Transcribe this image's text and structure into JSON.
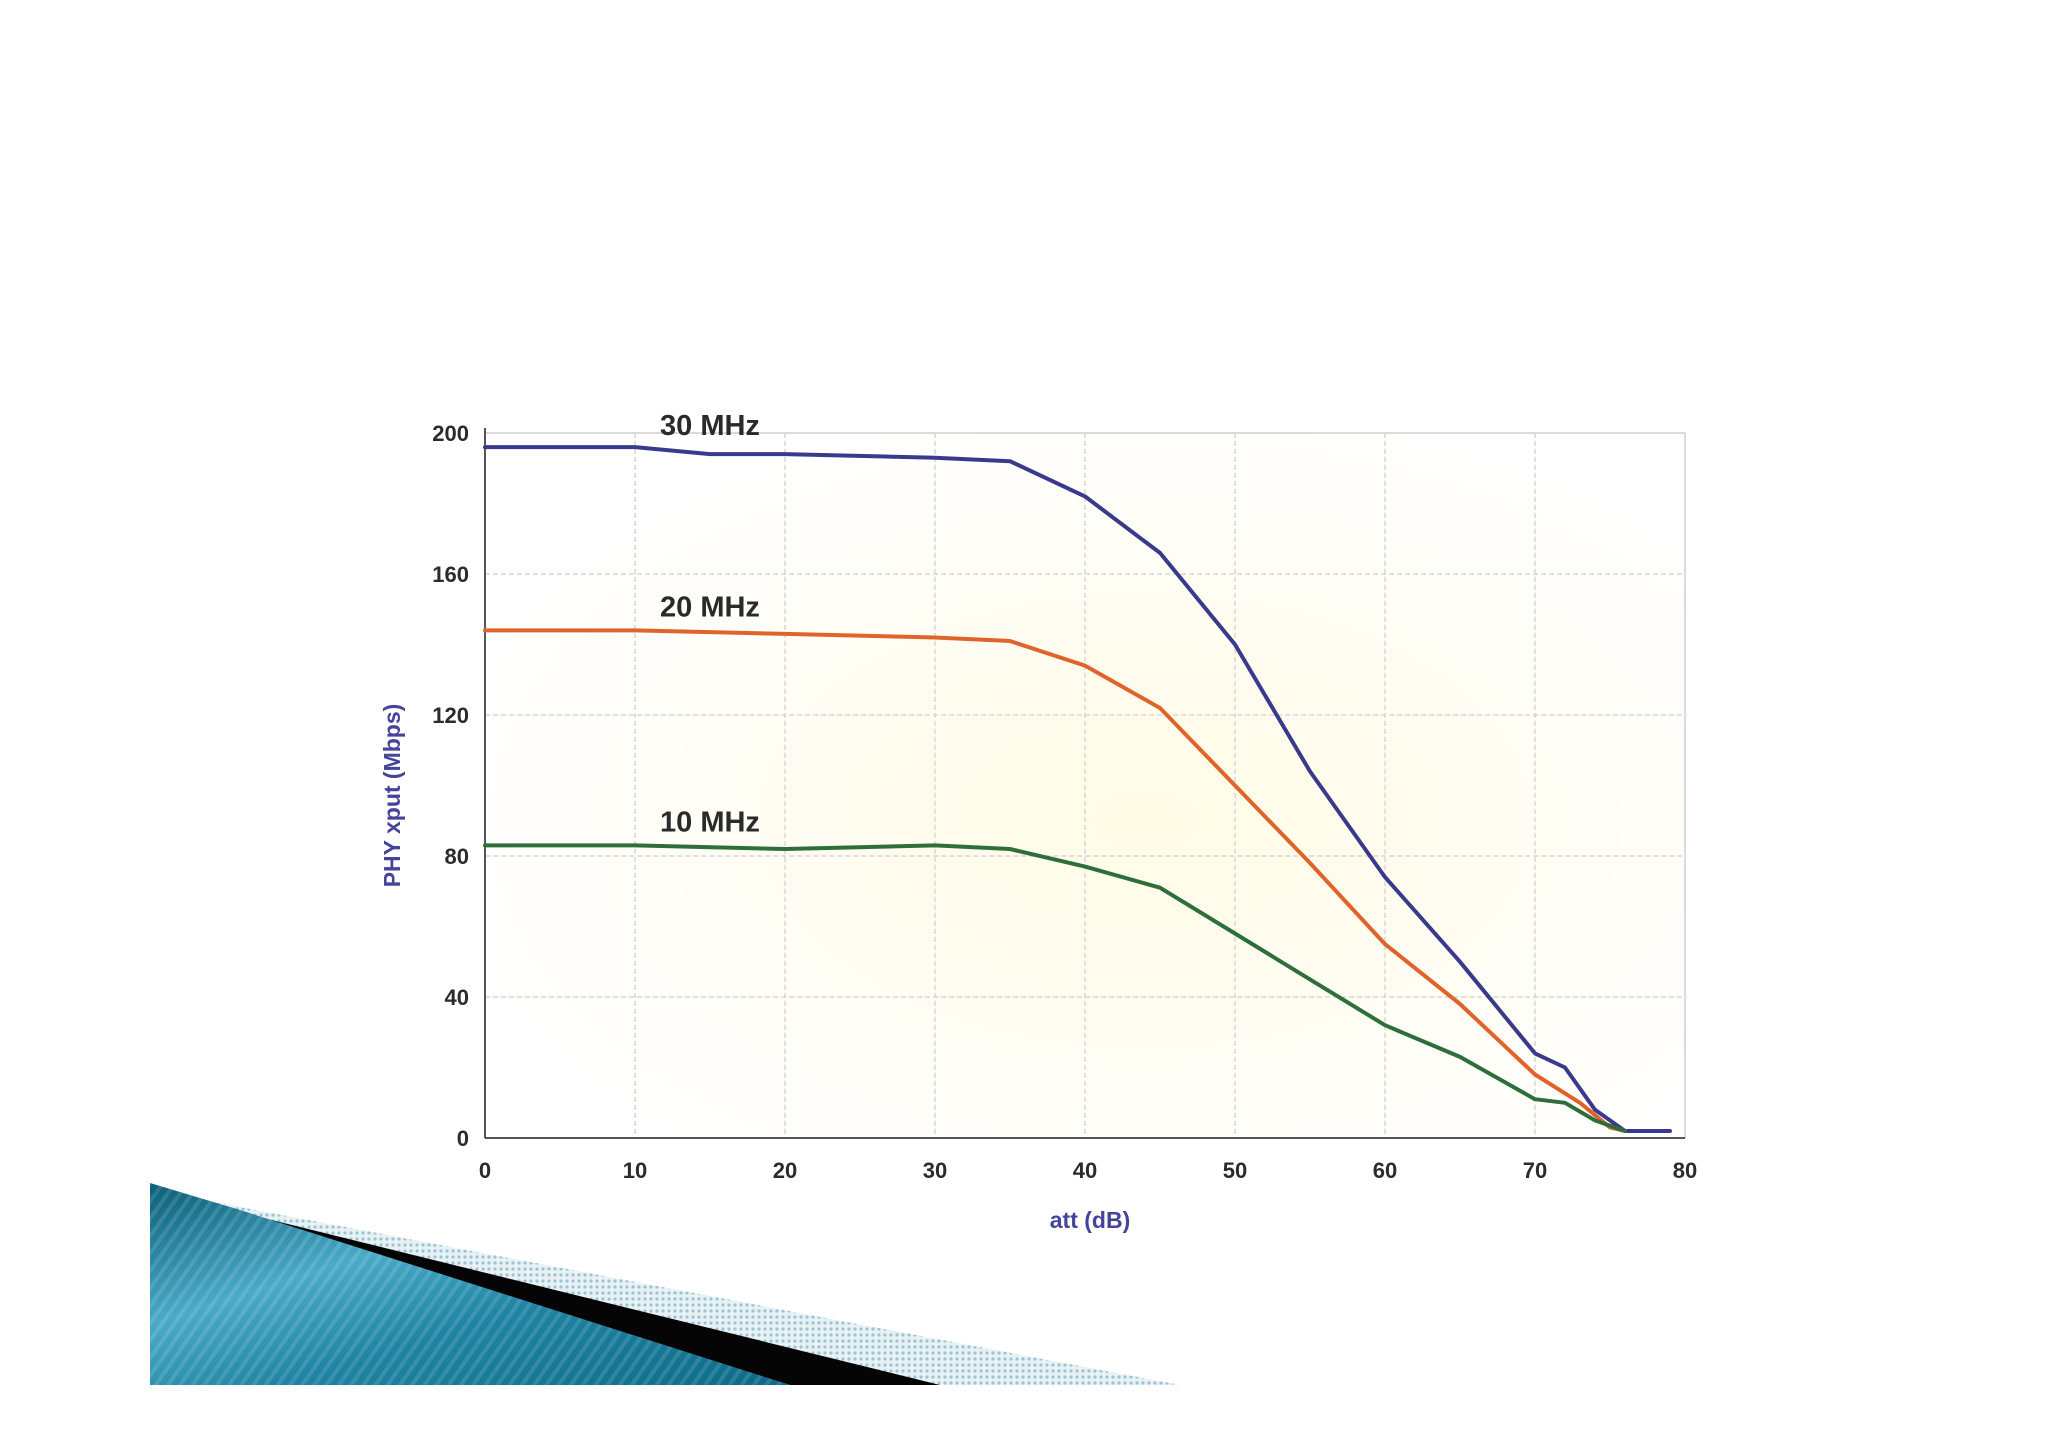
{
  "chart_data": {
    "type": "line",
    "xlabel": "att (dB)",
    "ylabel": "PHY xput (Mbps)",
    "xlim": [
      0,
      80
    ],
    "ylim": [
      0,
      200
    ],
    "xticks": [
      "0",
      "10",
      "20",
      "30",
      "40",
      "50",
      "60",
      "70",
      "80"
    ],
    "yticks": [
      "0",
      "40",
      "80",
      "120",
      "160",
      "200"
    ],
    "grid": true,
    "legend": "inline labels above each curve",
    "series": [
      {
        "name": "30 MHz",
        "color": "#3a3a8c",
        "x": [
          0,
          10,
          15,
          20,
          30,
          35,
          40,
          45,
          50,
          55,
          60,
          65,
          70,
          72,
          74,
          76,
          78,
          79
        ],
        "y": [
          196,
          196,
          194,
          194,
          193,
          192,
          182,
          166,
          140,
          104,
          74,
          50,
          24,
          20,
          8,
          2,
          2,
          2
        ]
      },
      {
        "name": "20 MHz",
        "color": "#e0642a",
        "x": [
          0,
          10,
          20,
          30,
          35,
          40,
          45,
          50,
          55,
          60,
          65,
          70,
          73,
          75,
          76
        ],
        "y": [
          144,
          144,
          143,
          142,
          141,
          134,
          122,
          100,
          78,
          55,
          38,
          18,
          10,
          3,
          2
        ]
      },
      {
        "name": "10 MHz",
        "color": "#2e6e3a",
        "x": [
          0,
          10,
          20,
          30,
          35,
          40,
          45,
          50,
          55,
          60,
          65,
          70,
          72,
          74,
          76
        ],
        "y": [
          83,
          83,
          82,
          83,
          82,
          77,
          71,
          58,
          45,
          32,
          23,
          11,
          10,
          5,
          2
        ]
      }
    ]
  }
}
